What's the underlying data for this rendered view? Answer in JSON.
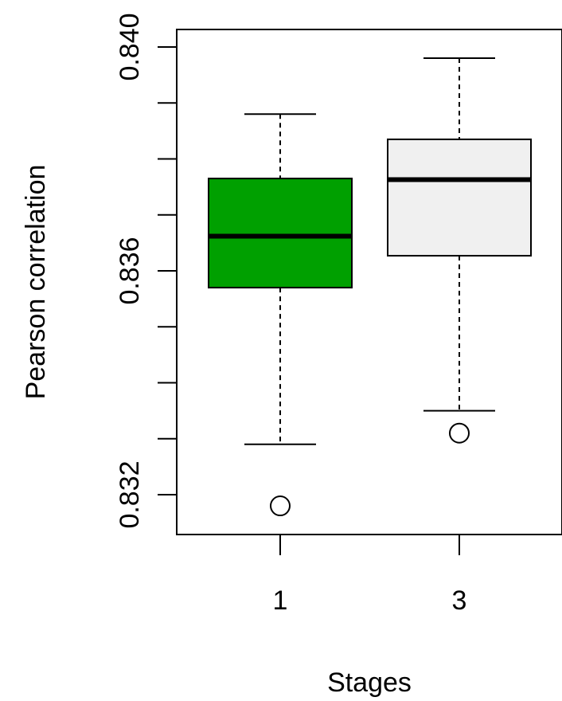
{
  "chart_data": {
    "type": "box",
    "title": "",
    "xlabel": "Stages",
    "ylabel": "Pearson correlation",
    "ylim": [
      0.8312,
      0.8407
    ],
    "y_ticks": [
      0.832,
      0.833,
      0.834,
      0.835,
      0.836,
      0.837,
      0.838,
      0.839,
      0.84
    ],
    "y_tick_labels": [
      "0.832",
      "",
      "",
      "",
      "0.836",
      "",
      "",
      "",
      "0.840"
    ],
    "categories": [
      "1",
      "3"
    ],
    "boxes": [
      {
        "category": "1",
        "whisker_low": 0.8329,
        "q1": 0.8357,
        "median": 0.83662,
        "q3": 0.83765,
        "whisker_high": 0.8388,
        "outliers": [
          0.8318
        ],
        "fill": "#00a000"
      },
      {
        "category": "3",
        "whisker_low": 0.8335,
        "q1": 0.83627,
        "median": 0.83763,
        "q3": 0.83835,
        "whisker_high": 0.8398,
        "outliers": [
          0.8331
        ],
        "fill": "#f0f0f0"
      }
    ],
    "grid": false,
    "legend": "none"
  }
}
